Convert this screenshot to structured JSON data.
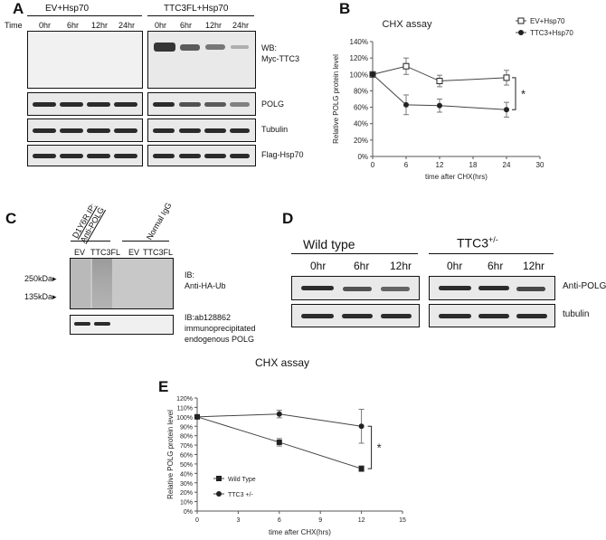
{
  "figure": {
    "panel_a": {
      "letter": "A",
      "time_label": "Time",
      "group_left": "EV+Hsp70",
      "group_right": "TTC3FL+Hsp70",
      "timepoints": [
        "0hr",
        "6hr",
        "12hr",
        "24hr"
      ],
      "rows": [
        {
          "label": "WB:\nMyc-TTC3"
        },
        {
          "label": "POLG"
        },
        {
          "label": "Tubulin"
        },
        {
          "label": "Flag-Hsp70"
        }
      ]
    },
    "panel_b": {
      "letter": "B"
    },
    "panel_c": {
      "letter": "C",
      "col_label_1": "D1Y6R IP:\nAnti-POLG",
      "col_label_2": "Normal IgG",
      "lanes": [
        "EV",
        "TTC3FL",
        "EV",
        "TTC3FL"
      ],
      "marker_250": "250kDa▸",
      "marker_135": "135kDa▸",
      "ib_top": "IB:\nAnti-HA-Ub",
      "ib_bottom": "IB:ab128862\nimmunoprecipitated\nendogenous POLG"
    },
    "panel_d": {
      "letter": "D",
      "group_left": "Wild type",
      "group_right": "TTC3",
      "group_right_sup": "+/-",
      "timepoints": [
        "0hr",
        "6hr",
        "12hr"
      ],
      "row1_label": "Anti-POLG",
      "row2_label": "tubulin"
    },
    "panel_e": {
      "letter": "E",
      "top_title": "CHX assay"
    }
  },
  "chart_data": [
    {
      "id": "B",
      "type": "line",
      "title": "CHX assay",
      "xlabel": "time after CHX(hrs)",
      "ylabel": "Relative POLG protein level",
      "xlim": [
        0,
        30
      ],
      "ylim": [
        0,
        140
      ],
      "xticks": [
        0,
        6,
        12,
        18,
        24,
        30
      ],
      "yticks": [
        0,
        20,
        40,
        60,
        80,
        100,
        120,
        140
      ],
      "ytick_suffix": "%",
      "x": [
        0,
        6,
        12,
        24
      ],
      "series": [
        {
          "name": "EV+Hsp70",
          "marker": "open-square",
          "values": [
            100,
            110,
            92,
            96
          ],
          "errors": [
            0,
            10,
            7,
            9
          ]
        },
        {
          "name": "TTC3+Hsp70",
          "marker": "filled-circle",
          "values": [
            100,
            63,
            62,
            57
          ],
          "errors": [
            0,
            12,
            8,
            9
          ]
        }
      ],
      "significance": "*",
      "legend": "top-right"
    },
    {
      "id": "E",
      "type": "line",
      "title": "",
      "xlabel": "time after CHX(hrs)",
      "ylabel": "Relative POLG protein level",
      "xlim": [
        0,
        15
      ],
      "ylim": [
        0,
        120
      ],
      "xticks": [
        0,
        3,
        6,
        9,
        12,
        15
      ],
      "yticks": [
        0,
        10,
        20,
        30,
        40,
        50,
        60,
        70,
        80,
        90,
        100,
        110,
        120
      ],
      "ytick_suffix": "%",
      "x": [
        0,
        6,
        12
      ],
      "series": [
        {
          "name": "Wild Type",
          "marker": "filled-square",
          "values": [
            100,
            73,
            45
          ],
          "errors": [
            0,
            4,
            3
          ]
        },
        {
          "name": "TTC3 +/-",
          "marker": "filled-circle",
          "values": [
            100,
            103,
            90
          ],
          "errors": [
            0,
            4,
            18
          ]
        }
      ],
      "significance": "*",
      "legend": "bottom-left"
    }
  ]
}
